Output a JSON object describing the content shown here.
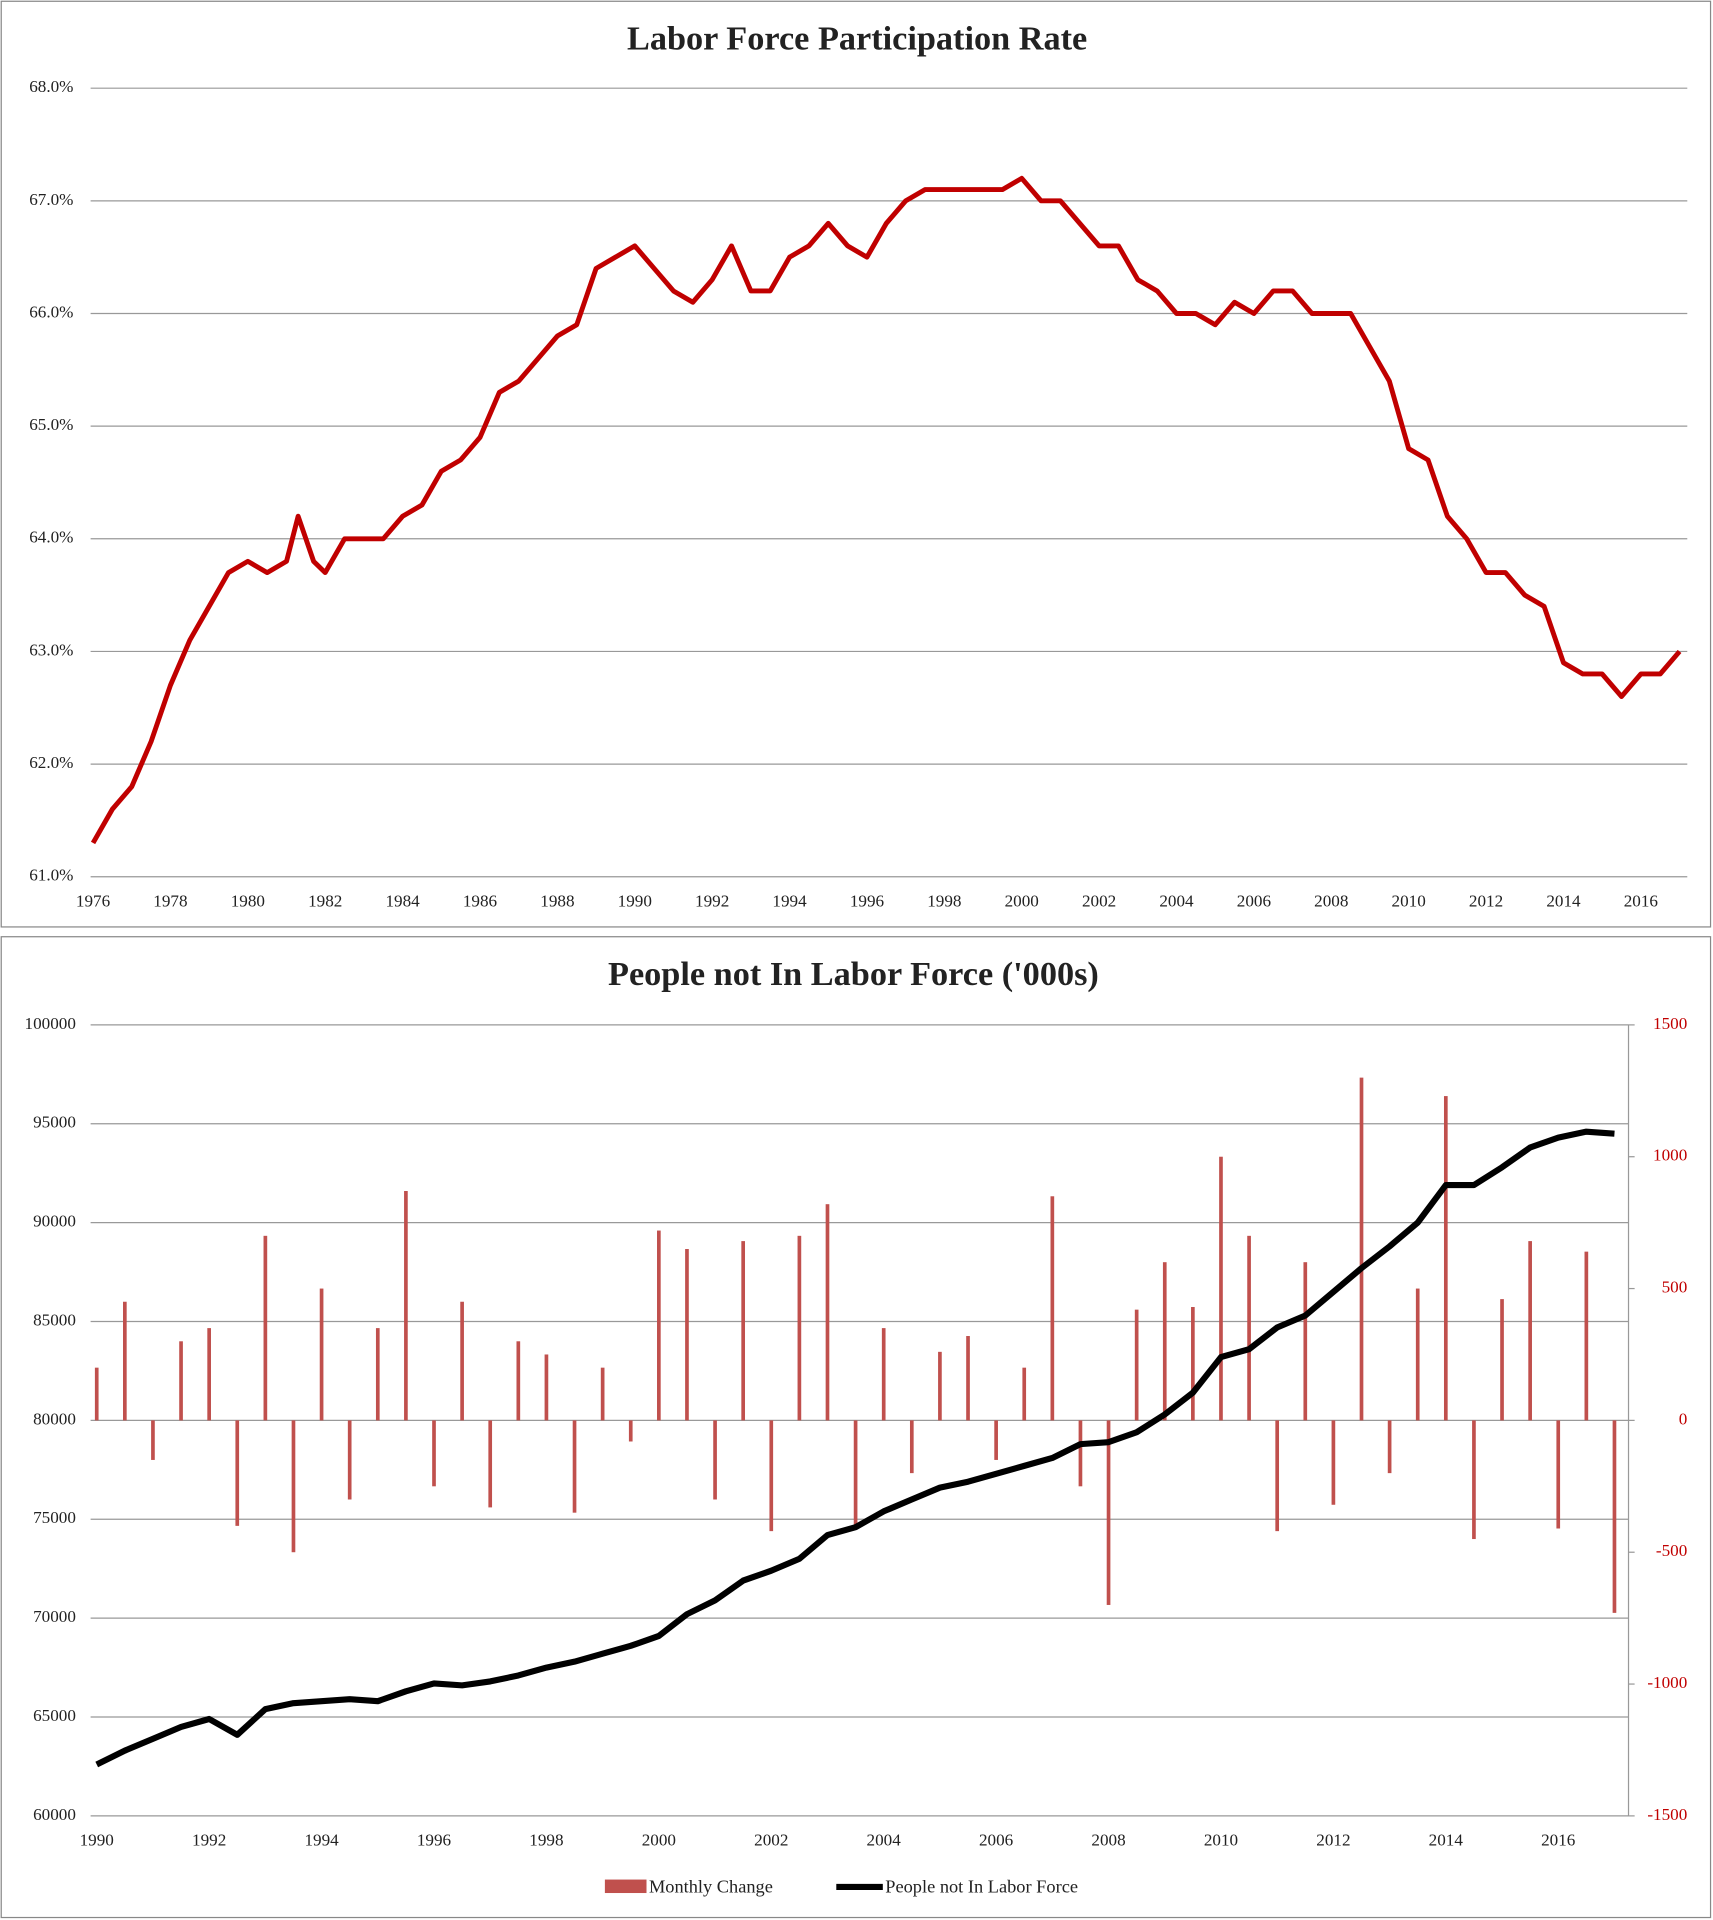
{
  "chart_data": [
    {
      "type": "line",
      "title": "Labor Force Participation Rate",
      "xlim": [
        1976,
        2017.2
      ],
      "xticks": [
        1976,
        1978,
        1980,
        1982,
        1984,
        1986,
        1988,
        1990,
        1992,
        1994,
        1996,
        1998,
        2000,
        2002,
        2004,
        2006,
        2008,
        2010,
        2012,
        2014,
        2016
      ],
      "ylim": [
        61,
        68
      ],
      "yticks": [
        {
          "value": 61,
          "label": "61.0%"
        },
        {
          "value": 62,
          "label": "62.0%"
        },
        {
          "value": 63,
          "label": "63.0%"
        },
        {
          "value": 64,
          "label": "64.0%"
        },
        {
          "value": 65,
          "label": "65.0%"
        },
        {
          "value": 66,
          "label": "66.0%"
        },
        {
          "value": 67,
          "label": "67.0%"
        },
        {
          "value": 68,
          "label": "68.0%"
        }
      ],
      "grid": true,
      "series": [
        {
          "color": "#c00000",
          "x": [
            1976,
            1976.5,
            1977,
            1977.5,
            1978,
            1978.5,
            1979,
            1979.5,
            1980,
            1980.5,
            1981,
            1981.3,
            1981.7,
            1982,
            1982.5,
            1983,
            1983.5,
            1984,
            1984.5,
            1985,
            1985.5,
            1986,
            1986.5,
            1987,
            1987.5,
            1988,
            1988.5,
            1989,
            1989.5,
            1990,
            1990.5,
            1991,
            1991.5,
            1992,
            1992.5,
            1993,
            1993.5,
            1994,
            1994.5,
            1995,
            1995.5,
            1996,
            1996.5,
            1997,
            1997.5,
            1998,
            1998.5,
            1999,
            1999.5,
            2000,
            2000.5,
            2001,
            2001.5,
            2002,
            2002.5,
            2003,
            2003.5,
            2004,
            2004.5,
            2005,
            2005.5,
            2006,
            2006.5,
            2007,
            2007.5,
            2008,
            2008.5,
            2009,
            2009.5,
            2010,
            2010.5,
            2011,
            2011.5,
            2012,
            2012.5,
            2013,
            2013.5,
            2014,
            2014.5,
            2015,
            2015.5,
            2016,
            2016.5,
            2017
          ],
          "values": [
            61.3,
            61.6,
            61.8,
            62.2,
            62.7,
            63.1,
            63.4,
            63.7,
            63.8,
            63.7,
            63.8,
            64.2,
            63.8,
            63.7,
            64.0,
            64.0,
            64.0,
            64.2,
            64.3,
            64.6,
            64.7,
            64.9,
            65.3,
            65.4,
            65.6,
            65.8,
            65.9,
            66.4,
            66.5,
            66.6,
            66.4,
            66.2,
            66.1,
            66.3,
            66.6,
            66.2,
            66.2,
            66.5,
            66.6,
            66.8,
            66.6,
            66.5,
            66.8,
            67.0,
            67.1,
            67.1,
            67.1,
            67.1,
            67.1,
            67.2,
            67.0,
            67.0,
            66.8,
            66.6,
            66.6,
            66.3,
            66.2,
            66.0,
            66.0,
            65.9,
            66.1,
            66.0,
            66.2,
            66.2,
            66.0,
            66.0,
            66.0,
            65.7,
            65.4,
            64.8,
            64.7,
            64.2,
            64.0,
            63.7,
            63.7,
            63.5,
            63.4,
            62.9,
            62.8,
            62.8,
            62.6,
            62.8,
            62.8,
            63.0
          ]
        }
      ]
    },
    {
      "type": "bar-line",
      "title": "People not In Labor Force ('000s)",
      "xlim": [
        1990,
        2017.25
      ],
      "xticks": [
        1990,
        1992,
        1994,
        1996,
        1998,
        2000,
        2002,
        2004,
        2006,
        2008,
        2010,
        2012,
        2014,
        2016
      ],
      "ylim": [
        60000,
        100000
      ],
      "yticks": [
        60000,
        65000,
        70000,
        75000,
        80000,
        85000,
        90000,
        95000,
        100000
      ],
      "y2lim": [
        -1500,
        1500
      ],
      "y2ticks": [
        -1500,
        -1000,
        -500,
        0,
        500,
        1000,
        1500
      ],
      "grid": true,
      "legend": "bottom",
      "series": [
        {
          "name": "Monthly Change",
          "color": "#c0504d",
          "axis": "y2",
          "x": [
            1990,
            1990.5,
            1991,
            1991.5,
            1992,
            1992.5,
            1993,
            1993.5,
            1994,
            1994.5,
            1995,
            1995.5,
            1996,
            1996.5,
            1997,
            1997.5,
            1998,
            1998.5,
            1999,
            1999.5,
            2000,
            2000.5,
            2001,
            2001.5,
            2002,
            2002.5,
            2003,
            2003.5,
            2004,
            2004.5,
            2005,
            2005.5,
            2006,
            2006.5,
            2007,
            2007.5,
            2008,
            2008.5,
            2009,
            2009.5,
            2010,
            2010.5,
            2011,
            2011.5,
            2012,
            2012.5,
            2013,
            2013.5,
            2014,
            2014.5,
            2015,
            2015.5,
            2016,
            2016.5,
            2017
          ],
          "values": [
            200,
            450,
            -150,
            300,
            350,
            -400,
            700,
            -500,
            500,
            -300,
            350,
            870,
            -250,
            450,
            -330,
            300,
            250,
            -350,
            200,
            -80,
            720,
            650,
            -300,
            680,
            -420,
            700,
            820,
            -400,
            350,
            -200,
            260,
            320,
            -150,
            200,
            850,
            -250,
            -700,
            420,
            600,
            430,
            1000,
            700,
            -420,
            600,
            -320,
            1300,
            -200,
            500,
            1230,
            -450,
            460,
            680,
            -410,
            640,
            -730
          ]
        },
        {
          "name": "People not In Labor Force",
          "color": "#000000",
          "x": [
            1990,
            1990.5,
            1991,
            1991.5,
            1992,
            1992.5,
            1993,
            1993.5,
            1994,
            1994.5,
            1995,
            1995.5,
            1996,
            1996.5,
            1997,
            1997.5,
            1998,
            1998.5,
            1999,
            1999.5,
            2000,
            2000.5,
            2001,
            2001.5,
            2002,
            2002.5,
            2003,
            2003.5,
            2004,
            2004.5,
            2005,
            2005.5,
            2006,
            2006.5,
            2007,
            2007.5,
            2008,
            2008.5,
            2009,
            2009.5,
            2010,
            2010.5,
            2011,
            2011.5,
            2012,
            2012.5,
            2013,
            2013.5,
            2014,
            2014.5,
            2015,
            2015.5,
            2016,
            2016.5,
            2017
          ],
          "values": [
            62600,
            63300,
            63900,
            64500,
            64900,
            64100,
            65400,
            65700,
            65800,
            65900,
            65800,
            66300,
            66700,
            66600,
            66800,
            67100,
            67500,
            67800,
            68200,
            68600,
            69100,
            70200,
            70900,
            71900,
            72400,
            73000,
            74200,
            74600,
            75400,
            76000,
            76600,
            76900,
            77300,
            77700,
            78100,
            78800,
            78900,
            79400,
            80300,
            81400,
            83200,
            83600,
            84700,
            85300,
            86500,
            87700,
            88800,
            90000,
            91900,
            91900,
            92800,
            93800,
            94300,
            94600,
            94500
          ]
        }
      ]
    }
  ]
}
